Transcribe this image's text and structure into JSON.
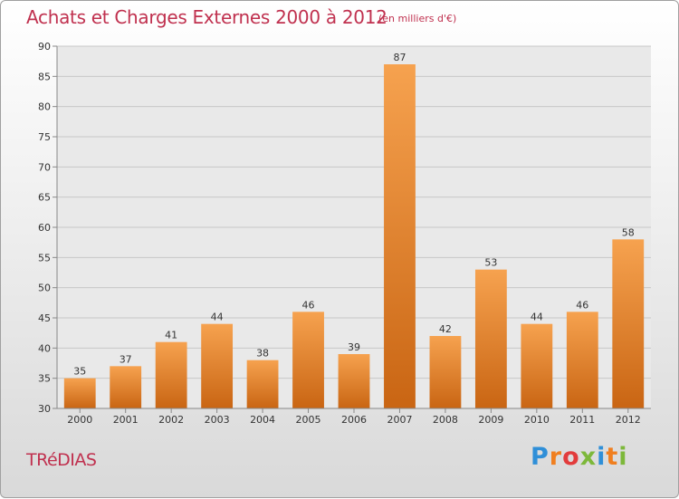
{
  "header": {
    "title": "Achats et Charges Externes 2000 à 2012",
    "subtitle": "(en milliers d'€)"
  },
  "footer": {
    "commune": "TRéDIAS",
    "logo": {
      "text": "Proxiti",
      "letters": [
        {
          "char": "P",
          "color": "#2f8fd8"
        },
        {
          "char": "r",
          "color": "#f07f1f"
        },
        {
          "char": "o",
          "color": "#e23c3c"
        },
        {
          "char": "x",
          "color": "#7db83a"
        },
        {
          "char": "i",
          "color": "#2f8fd8"
        },
        {
          "char": "t",
          "color": "#f07f1f"
        },
        {
          "char": "i",
          "color": "#7db83a"
        }
      ]
    }
  },
  "colors": {
    "title": "#c0314f",
    "bar_top": "#f6a24f",
    "bar_bottom": "#c96513",
    "grid": "#c8c8c8",
    "plot_bg": "#e9e9e9"
  },
  "chart_data": {
    "type": "bar",
    "categories": [
      "2000",
      "2001",
      "2002",
      "2003",
      "2004",
      "2005",
      "2006",
      "2007",
      "2008",
      "2009",
      "2010",
      "2011",
      "2012"
    ],
    "values": [
      35,
      37,
      41,
      44,
      38,
      46,
      39,
      87,
      42,
      53,
      44,
      46,
      58
    ],
    "yticks": [
      30,
      35,
      40,
      45,
      50,
      55,
      60,
      65,
      70,
      75,
      80,
      85,
      90
    ],
    "ylim": [
      30,
      90
    ],
    "grid": "horizontal",
    "legend": "none",
    "title": "Achats et Charges Externes 2000 à 2012",
    "xlabel": "",
    "ylabel": ""
  }
}
